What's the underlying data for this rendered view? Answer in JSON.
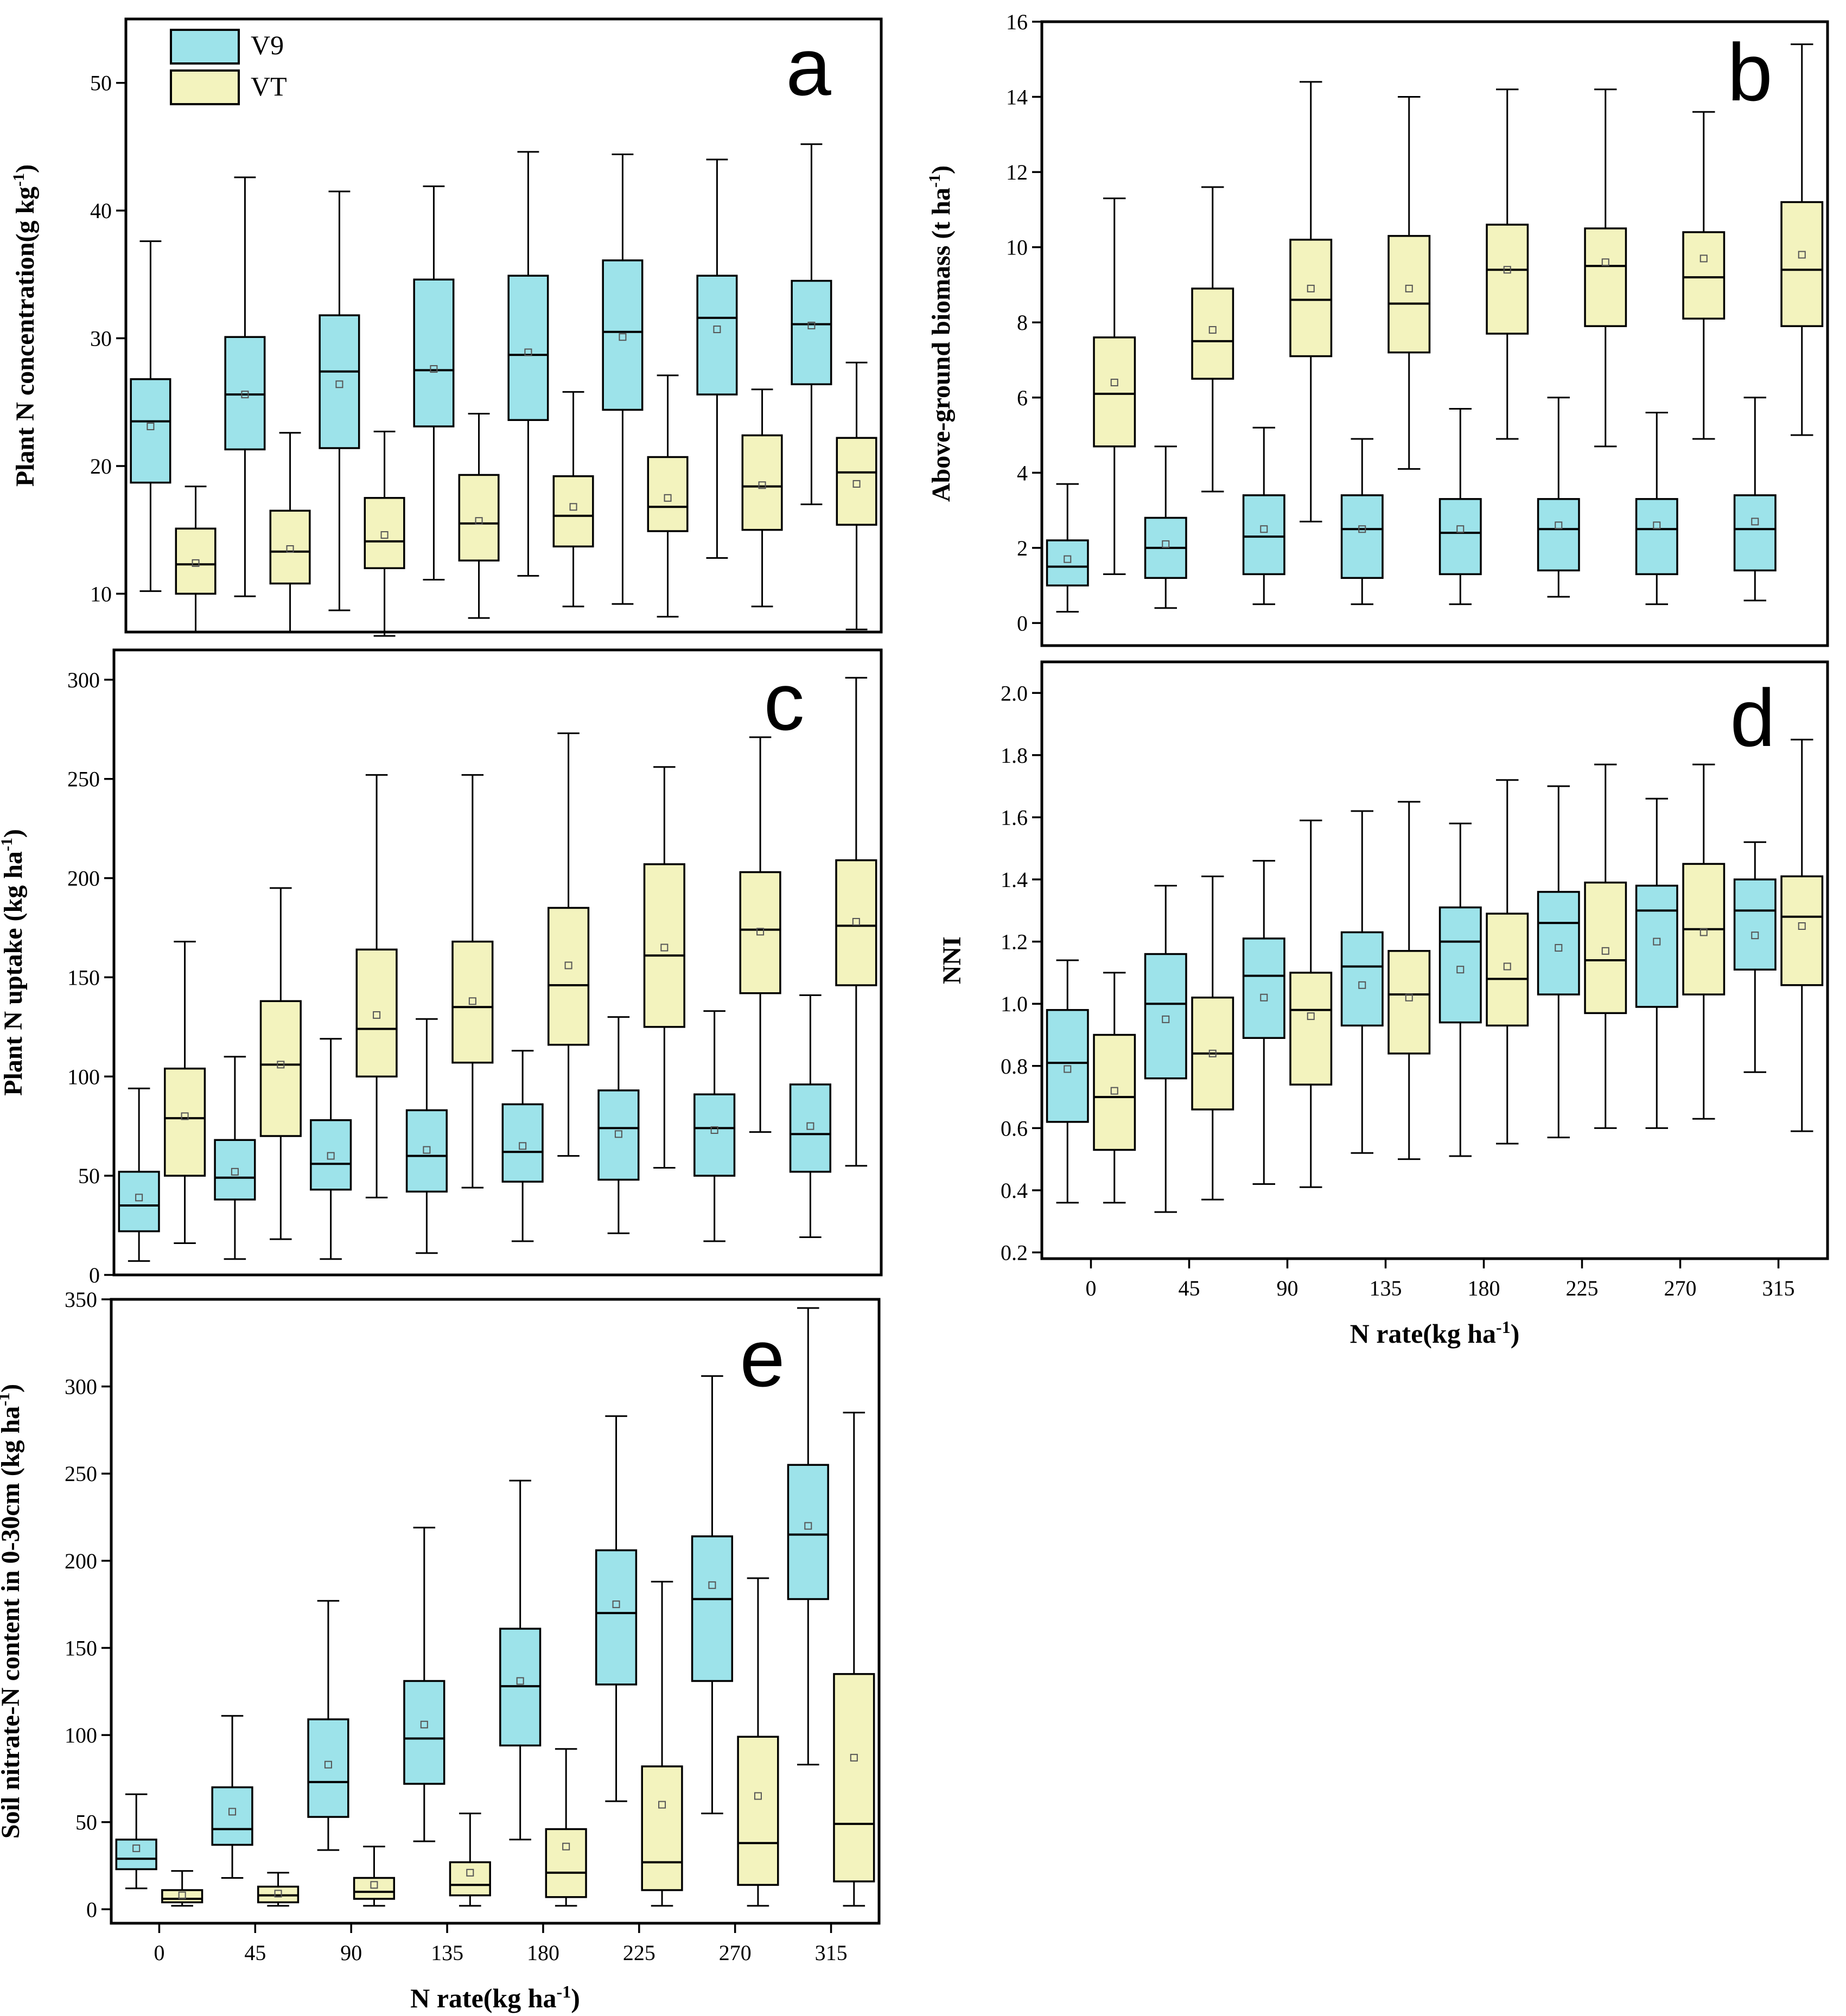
{
  "colors": {
    "v9": "#9DE3EA",
    "vt": "#F3F3BE",
    "frame": "#000000"
  },
  "legend": {
    "v9": "V9",
    "vt": "VT"
  },
  "shared": {
    "xticks": [
      "0",
      "45",
      "90",
      "135",
      "180",
      "225",
      "270",
      "315"
    ],
    "xlabel_main": "N rate(kg ha",
    "xlabel_sup": "-1",
    "xlabel_end": ")"
  },
  "chart_data": [
    {
      "id": "a",
      "type": "box",
      "panel_label": "a",
      "ylabel": {
        "main": "Plant N concentration(g kg",
        "sup": "-1",
        "end": ")"
      },
      "ylim": [
        7,
        55
      ],
      "yticks": [
        10,
        20,
        30,
        40,
        50
      ],
      "ytick_labels": [
        "10",
        "20",
        "30",
        "40",
        "50"
      ],
      "categories": [
        "0",
        "45",
        "90",
        "135",
        "180",
        "225",
        "270",
        "315"
      ],
      "series": [
        {
          "name": "V9",
          "boxes": [
            {
              "min": 10.2,
              "q1": 18.7,
              "median": 23.5,
              "q3": 26.8,
              "max": 37.6,
              "mean": 23.1
            },
            {
              "min": 9.8,
              "q1": 21.3,
              "median": 25.6,
              "q3": 30.1,
              "max": 42.6,
              "mean": 25.6
            },
            {
              "min": 8.7,
              "q1": 21.4,
              "median": 27.4,
              "q3": 31.8,
              "max": 41.5,
              "mean": 26.4
            },
            {
              "min": 11.1,
              "q1": 23.1,
              "median": 27.5,
              "q3": 34.6,
              "max": 41.9,
              "mean": 27.6
            },
            {
              "min": 11.4,
              "q1": 23.6,
              "median": 28.7,
              "q3": 34.9,
              "max": 44.6,
              "mean": 28.9
            },
            {
              "min": 9.2,
              "q1": 24.4,
              "median": 30.5,
              "q3": 36.1,
              "max": 44.4,
              "mean": 30.1
            },
            {
              "min": 12.8,
              "q1": 25.6,
              "median": 31.6,
              "q3": 34.9,
              "max": 44.0,
              "mean": 30.7
            },
            {
              "min": 17.0,
              "q1": 26.4,
              "median": 31.1,
              "q3": 34.5,
              "max": 45.2,
              "mean": 31.0
            }
          ]
        },
        {
          "name": "VT",
          "boxes": [
            {
              "min": 7.0,
              "q1": 10.0,
              "median": 12.3,
              "q3": 15.1,
              "max": 18.4,
              "mean": 12.4
            },
            {
              "min": 7.0,
              "q1": 10.8,
              "median": 13.3,
              "q3": 16.5,
              "max": 22.6,
              "mean": 13.5
            },
            {
              "min": 6.7,
              "q1": 12.0,
              "median": 14.1,
              "q3": 17.5,
              "max": 22.7,
              "mean": 14.6
            },
            {
              "min": 8.1,
              "q1": 12.6,
              "median": 15.5,
              "q3": 19.3,
              "max": 24.1,
              "mean": 15.7
            },
            {
              "min": 9.0,
              "q1": 13.7,
              "median": 16.1,
              "q3": 19.2,
              "max": 25.8,
              "mean": 16.8
            },
            {
              "min": 8.2,
              "q1": 14.9,
              "median": 16.8,
              "q3": 20.7,
              "max": 27.1,
              "mean": 17.5
            },
            {
              "min": 9.0,
              "q1": 15.0,
              "median": 18.4,
              "q3": 22.4,
              "max": 26.0,
              "mean": 18.5
            },
            {
              "min": 7.2,
              "q1": 15.4,
              "median": 19.5,
              "q3": 22.2,
              "max": 28.1,
              "mean": 18.6
            }
          ]
        }
      ]
    },
    {
      "id": "b",
      "type": "box",
      "panel_label": "b",
      "ylabel": {
        "main": "Above-ground biomass (t ha",
        "sup": "-1",
        "end": ")"
      },
      "ylim": [
        -0.6,
        16
      ],
      "yticks": [
        0,
        2,
        4,
        6,
        8,
        10,
        12,
        14,
        16
      ],
      "ytick_labels": [
        "0",
        "2",
        "4",
        "6",
        "8",
        "10",
        "12",
        "14",
        "16"
      ],
      "categories": [
        "0",
        "45",
        "90",
        "135",
        "180",
        "225",
        "270",
        "315"
      ],
      "series": [
        {
          "name": "V9",
          "boxes": [
            {
              "min": 0.3,
              "q1": 1.0,
              "median": 1.5,
              "q3": 2.2,
              "max": 3.7,
              "mean": 1.7
            },
            {
              "min": 0.4,
              "q1": 1.2,
              "median": 2.0,
              "q3": 2.8,
              "max": 4.7,
              "mean": 2.1
            },
            {
              "min": 0.5,
              "q1": 1.3,
              "median": 2.3,
              "q3": 3.4,
              "max": 5.2,
              "mean": 2.5
            },
            {
              "min": 0.5,
              "q1": 1.2,
              "median": 2.5,
              "q3": 3.4,
              "max": 4.9,
              "mean": 2.5
            },
            {
              "min": 0.5,
              "q1": 1.3,
              "median": 2.4,
              "q3": 3.3,
              "max": 5.7,
              "mean": 2.5
            },
            {
              "min": 0.7,
              "q1": 1.4,
              "median": 2.5,
              "q3": 3.3,
              "max": 6.0,
              "mean": 2.6
            },
            {
              "min": 0.5,
              "q1": 1.3,
              "median": 2.5,
              "q3": 3.3,
              "max": 5.6,
              "mean": 2.6
            },
            {
              "min": 0.6,
              "q1": 1.4,
              "median": 2.5,
              "q3": 3.4,
              "max": 6.0,
              "mean": 2.7
            }
          ]
        },
        {
          "name": "VT",
          "boxes": [
            {
              "min": 1.3,
              "q1": 4.7,
              "median": 6.1,
              "q3": 7.6,
              "max": 11.3,
              "mean": 6.4
            },
            {
              "min": 3.5,
              "q1": 6.5,
              "median": 7.5,
              "q3": 8.9,
              "max": 11.6,
              "mean": 7.8
            },
            {
              "min": 2.7,
              "q1": 7.1,
              "median": 8.6,
              "q3": 10.2,
              "max": 14.4,
              "mean": 8.9
            },
            {
              "min": 4.1,
              "q1": 7.2,
              "median": 8.5,
              "q3": 10.3,
              "max": 14.0,
              "mean": 8.9
            },
            {
              "min": 4.9,
              "q1": 7.7,
              "median": 9.4,
              "q3": 10.6,
              "max": 14.2,
              "mean": 9.4
            },
            {
              "min": 4.7,
              "q1": 7.9,
              "median": 9.5,
              "q3": 10.5,
              "max": 14.2,
              "mean": 9.6
            },
            {
              "min": 4.9,
              "q1": 8.1,
              "median": 9.2,
              "q3": 10.4,
              "max": 13.6,
              "mean": 9.7
            },
            {
              "min": 5.0,
              "q1": 7.9,
              "median": 9.4,
              "q3": 11.2,
              "max": 15.4,
              "mean": 9.8
            }
          ]
        }
      ]
    },
    {
      "id": "c",
      "type": "box",
      "panel_label": "c",
      "ylabel": {
        "main": "Plant N uptake (kg ha",
        "sup": "-1",
        "end": ")"
      },
      "ylim": [
        0,
        315
      ],
      "yticks": [
        0,
        50,
        100,
        150,
        200,
        250,
        300
      ],
      "ytick_labels": [
        "0",
        "50",
        "100",
        "150",
        "200",
        "250",
        "300"
      ],
      "categories": [
        "0",
        "45",
        "90",
        "135",
        "180",
        "225",
        "270",
        "315"
      ],
      "series": [
        {
          "name": "V9",
          "boxes": [
            {
              "min": 7,
              "q1": 22,
              "median": 35,
              "q3": 52,
              "max": 94,
              "mean": 39
            },
            {
              "min": 8,
              "q1": 38,
              "median": 49,
              "q3": 68,
              "max": 110,
              "mean": 52
            },
            {
              "min": 8,
              "q1": 43,
              "median": 56,
              "q3": 78,
              "max": 119,
              "mean": 60
            },
            {
              "min": 11,
              "q1": 42,
              "median": 60,
              "q3": 83,
              "max": 129,
              "mean": 63
            },
            {
              "min": 17,
              "q1": 47,
              "median": 62,
              "q3": 86,
              "max": 113,
              "mean": 65
            },
            {
              "min": 21,
              "q1": 48,
              "median": 74,
              "q3": 93,
              "max": 130,
              "mean": 71
            },
            {
              "min": 17,
              "q1": 50,
              "median": 74,
              "q3": 91,
              "max": 133,
              "mean": 73
            },
            {
              "min": 19,
              "q1": 52,
              "median": 71,
              "q3": 96,
              "max": 141,
              "mean": 75
            }
          ]
        },
        {
          "name": "VT",
          "boxes": [
            {
              "min": 16,
              "q1": 50,
              "median": 79,
              "q3": 104,
              "max": 168,
              "mean": 80
            },
            {
              "min": 18,
              "q1": 70,
              "median": 106,
              "q3": 138,
              "max": 195,
              "mean": 106
            },
            {
              "min": 39,
              "q1": 100,
              "median": 124,
              "q3": 164,
              "max": 252,
              "mean": 131
            },
            {
              "min": 44,
              "q1": 107,
              "median": 135,
              "q3": 168,
              "max": 252,
              "mean": 138
            },
            {
              "min": 60,
              "q1": 116,
              "median": 146,
              "q3": 185,
              "max": 273,
              "mean": 156
            },
            {
              "min": 54,
              "q1": 125,
              "median": 161,
              "q3": 207,
              "max": 256,
              "mean": 165
            },
            {
              "min": 72,
              "q1": 142,
              "median": 174,
              "q3": 203,
              "max": 271,
              "mean": 173
            },
            {
              "min": 55,
              "q1": 146,
              "median": 176,
              "q3": 209,
              "max": 301,
              "mean": 178
            }
          ]
        }
      ]
    },
    {
      "id": "d",
      "type": "box",
      "panel_label": "d",
      "ylabel": {
        "main": "NNI",
        "sup": "",
        "end": ""
      },
      "ylim": [
        0.18,
        2.1
      ],
      "yticks": [
        0.2,
        0.4,
        0.6,
        0.8,
        1.0,
        1.2,
        1.4,
        1.6,
        1.8,
        2.0
      ],
      "ytick_labels": [
        "0.2",
        "0.4",
        "0.6",
        "0.8",
        "1.0",
        "1.2",
        "1.4",
        "1.6",
        "1.8",
        "2.0"
      ],
      "categories": [
        "0",
        "45",
        "90",
        "135",
        "180",
        "225",
        "270",
        "315"
      ],
      "series": [
        {
          "name": "V9",
          "boxes": [
            {
              "min": 0.36,
              "q1": 0.62,
              "median": 0.81,
              "q3": 0.98,
              "max": 1.14,
              "mean": 0.79
            },
            {
              "min": 0.33,
              "q1": 0.76,
              "median": 1.0,
              "q3": 1.16,
              "max": 1.38,
              "mean": 0.95
            },
            {
              "min": 0.42,
              "q1": 0.89,
              "median": 1.09,
              "q3": 1.21,
              "max": 1.46,
              "mean": 1.02
            },
            {
              "min": 0.52,
              "q1": 0.93,
              "median": 1.12,
              "q3": 1.23,
              "max": 1.62,
              "mean": 1.06
            },
            {
              "min": 0.51,
              "q1": 0.94,
              "median": 1.2,
              "q3": 1.31,
              "max": 1.58,
              "mean": 1.11
            },
            {
              "min": 0.57,
              "q1": 1.03,
              "median": 1.26,
              "q3": 1.36,
              "max": 1.7,
              "mean": 1.18
            },
            {
              "min": 0.6,
              "q1": 0.99,
              "median": 1.3,
              "q3": 1.38,
              "max": 1.66,
              "mean": 1.2
            },
            {
              "min": 0.78,
              "q1": 1.11,
              "median": 1.3,
              "q3": 1.4,
              "max": 1.52,
              "mean": 1.22
            }
          ]
        },
        {
          "name": "VT",
          "boxes": [
            {
              "min": 0.36,
              "q1": 0.53,
              "median": 0.7,
              "q3": 0.9,
              "max": 1.1,
              "mean": 0.72
            },
            {
              "min": 0.37,
              "q1": 0.66,
              "median": 0.84,
              "q3": 1.02,
              "max": 1.41,
              "mean": 0.84
            },
            {
              "min": 0.41,
              "q1": 0.74,
              "median": 0.98,
              "q3": 1.1,
              "max": 1.59,
              "mean": 0.96
            },
            {
              "min": 0.5,
              "q1": 0.84,
              "median": 1.03,
              "q3": 1.17,
              "max": 1.65,
              "mean": 1.02
            },
            {
              "min": 0.55,
              "q1": 0.93,
              "median": 1.08,
              "q3": 1.29,
              "max": 1.72,
              "mean": 1.12
            },
            {
              "min": 0.6,
              "q1": 0.97,
              "median": 1.14,
              "q3": 1.39,
              "max": 1.77,
              "mean": 1.17
            },
            {
              "min": 0.63,
              "q1": 1.03,
              "median": 1.24,
              "q3": 1.45,
              "max": 1.77,
              "mean": 1.23
            },
            {
              "min": 0.59,
              "q1": 1.06,
              "median": 1.28,
              "q3": 1.41,
              "max": 1.85,
              "mean": 1.25
            }
          ]
        }
      ]
    },
    {
      "id": "e",
      "type": "box",
      "panel_label": "e",
      "ylabel": {
        "main": "Soil nitrate-N content in 0-30cm (kg ha",
        "sup": "-1",
        "end": ")"
      },
      "ylim": [
        -8,
        350
      ],
      "yticks": [
        0,
        50,
        100,
        150,
        200,
        250,
        300,
        350
      ],
      "ytick_labels": [
        "0",
        "50",
        "100",
        "150",
        "200",
        "250",
        "300",
        "350"
      ],
      "categories": [
        "0",
        "45",
        "90",
        "135",
        "180",
        "225",
        "270",
        "315"
      ],
      "series": [
        {
          "name": "V9",
          "boxes": [
            {
              "min": 12,
              "q1": 23,
              "median": 29,
              "q3": 40,
              "max": 66,
              "mean": 35
            },
            {
              "min": 18,
              "q1": 37,
              "median": 46,
              "q3": 70,
              "max": 111,
              "mean": 56
            },
            {
              "min": 34,
              "q1": 53,
              "median": 73,
              "q3": 109,
              "max": 177,
              "mean": 83
            },
            {
              "min": 39,
              "q1": 72,
              "median": 98,
              "q3": 131,
              "max": 219,
              "mean": 106
            },
            {
              "min": 40,
              "q1": 94,
              "median": 128,
              "q3": 161,
              "max": 246,
              "mean": 131
            },
            {
              "min": 62,
              "q1": 129,
              "median": 170,
              "q3": 206,
              "max": 283,
              "mean": 175
            },
            {
              "min": 55,
              "q1": 131,
              "median": 178,
              "q3": 214,
              "max": 306,
              "mean": 186
            },
            {
              "min": 83,
              "q1": 178,
              "median": 215,
              "q3": 255,
              "max": 345,
              "mean": 220
            }
          ]
        },
        {
          "name": "VT",
          "boxes": [
            {
              "min": 2,
              "q1": 4,
              "median": 6,
              "q3": 11,
              "max": 22,
              "mean": 8
            },
            {
              "min": 2,
              "q1": 4,
              "median": 8,
              "q3": 13,
              "max": 21,
              "mean": 9
            },
            {
              "min": 2,
              "q1": 6,
              "median": 10,
              "q3": 18,
              "max": 36,
              "mean": 14
            },
            {
              "min": 2,
              "q1": 8,
              "median": 14,
              "q3": 27,
              "max": 55,
              "mean": 21
            },
            {
              "min": 2,
              "q1": 7,
              "median": 21,
              "q3": 46,
              "max": 92,
              "mean": 36
            },
            {
              "min": 2,
              "q1": 11,
              "median": 27,
              "q3": 82,
              "max": 188,
              "mean": 60
            },
            {
              "min": 2,
              "q1": 14,
              "median": 38,
              "q3": 99,
              "max": 190,
              "mean": 65
            },
            {
              "min": 2,
              "q1": 16,
              "median": 49,
              "q3": 135,
              "max": 285,
              "mean": 87
            }
          ]
        }
      ]
    }
  ]
}
